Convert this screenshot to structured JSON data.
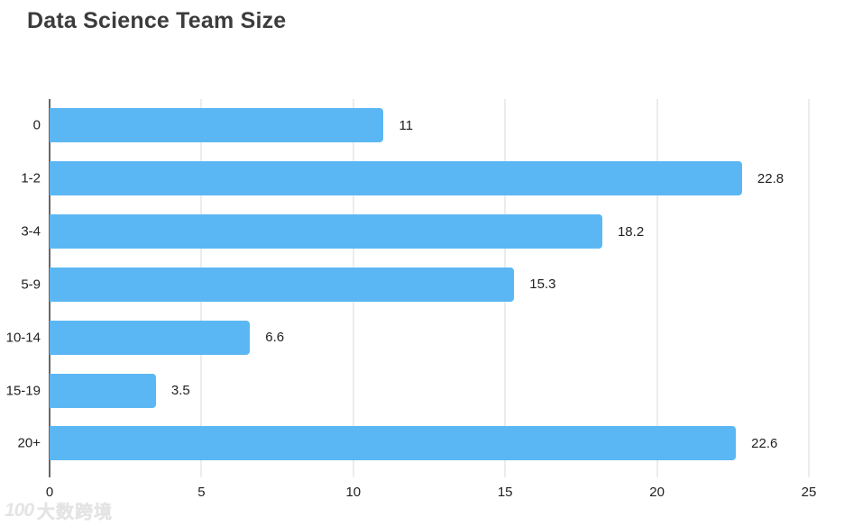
{
  "page": {
    "title": "Data Science Team Size"
  },
  "chart_data": {
    "type": "bar",
    "orientation": "horizontal",
    "title": "Data Science Team Size",
    "categories": [
      "0",
      "1-2",
      "3-4",
      "5-9",
      "10-14",
      "15-19",
      "20+"
    ],
    "values": [
      11,
      22.8,
      18.2,
      15.3,
      6.6,
      3.5,
      22.6
    ],
    "value_labels": [
      "11",
      "22.8",
      "18.2",
      "15.3",
      "6.6",
      "3.5",
      "22.6"
    ],
    "xlabel": "",
    "ylabel": "",
    "xlim": [
      0,
      25
    ],
    "x_ticks": [
      0,
      5,
      10,
      15,
      20,
      25
    ],
    "grid": true,
    "legend": "none",
    "colors": {
      "bar": "#5BB7F3",
      "gridline": "#DADADA",
      "axis_line": "#666666",
      "title_text": "#3C3C3C",
      "label_text": "#1F1F1F",
      "watermark": "#E4E4E4"
    }
  },
  "watermark": {
    "logo": "100",
    "text": "大数跨境"
  }
}
